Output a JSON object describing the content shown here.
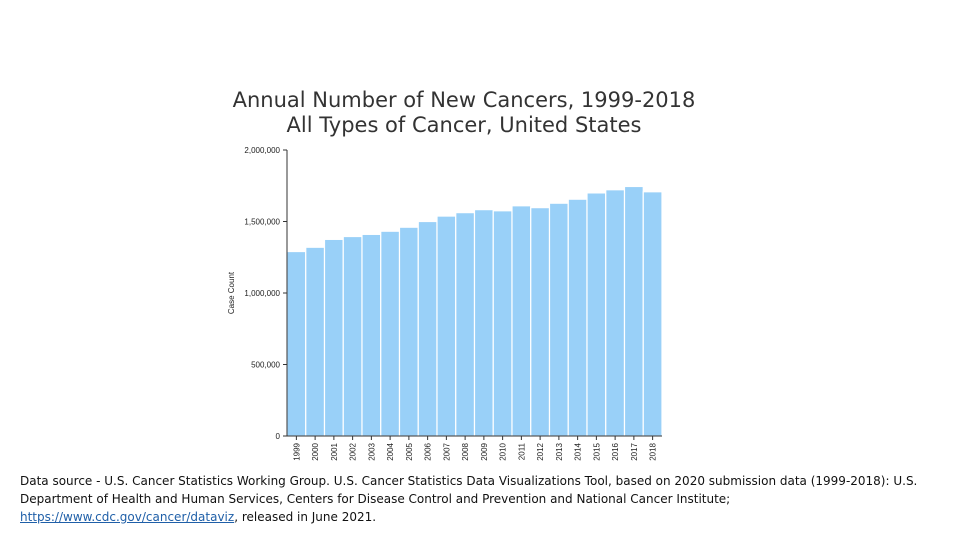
{
  "chart_data": {
    "type": "bar",
    "title": "Annual Number of New Cancers, 1999-2018",
    "subtitle": "All Types of Cancer, United States",
    "xlabel": "",
    "ylabel": "Case Count",
    "ylim": [
      0,
      2000000
    ],
    "yticks": [
      0,
      500000,
      1000000,
      1500000,
      2000000
    ],
    "ytick_labels": [
      "0",
      "500,000",
      "1,000,000",
      "1,500,000",
      "2,000,000"
    ],
    "categories": [
      "1999",
      "2000",
      "2001",
      "2002",
      "2003",
      "2004",
      "2005",
      "2006",
      "2007",
      "2008",
      "2009",
      "2010",
      "2011",
      "2012",
      "2013",
      "2014",
      "2015",
      "2016",
      "2017",
      "2018"
    ],
    "values": [
      1290000,
      1320000,
      1375000,
      1395000,
      1410000,
      1432000,
      1460000,
      1500000,
      1538000,
      1562000,
      1583000,
      1575000,
      1610000,
      1597000,
      1628000,
      1656000,
      1700000,
      1722000,
      1745000,
      1708000
    ],
    "bar_color": "#99d0f8",
    "bar_edge_color": "#ffffff",
    "grid": false
  },
  "footer": {
    "text_before": "Data source - U.S. Cancer Statistics Working Group. U.S. Cancer Statistics Data Visualizations Tool, based on 2020 submission data (1999-2018): U.S. Department of Health and Human Services, Centers for Disease Control and Prevention and National Cancer Institute; ",
    "link_text": "https://www.cdc.gov/cancer/dataviz",
    "text_after": ", released in June 2021."
  }
}
